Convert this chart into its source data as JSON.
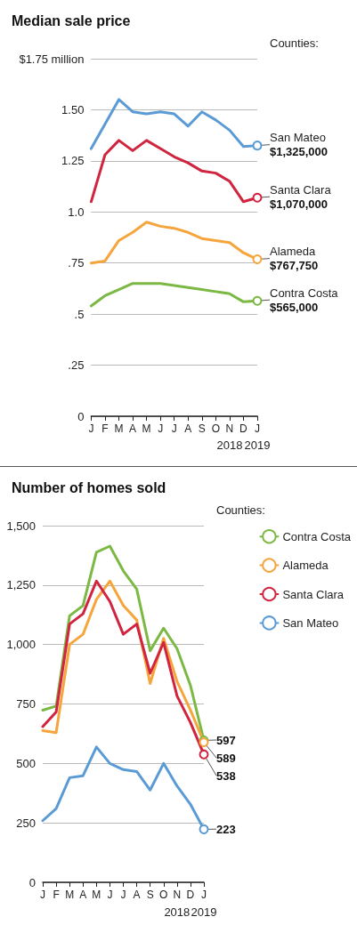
{
  "chart_data": [
    {
      "type": "line",
      "title": "Median sale price",
      "legend_title": "Counties:",
      "categories": [
        "J",
        "F",
        "M",
        "A",
        "M",
        "J",
        "J",
        "A",
        "S",
        "O",
        "N",
        "D",
        "J"
      ],
      "series": [
        {
          "name": "San Mateo",
          "color": "#5b9bd5",
          "values": [
            1.31,
            1.43,
            1.55,
            1.49,
            1.48,
            1.49,
            1.48,
            1.42,
            1.49,
            1.45,
            1.4,
            1.32,
            1.325
          ]
        },
        {
          "name": "Santa Clara",
          "color": "#d0243f",
          "values": [
            1.05,
            1.28,
            1.35,
            1.3,
            1.35,
            1.31,
            1.27,
            1.24,
            1.2,
            1.19,
            1.15,
            1.05,
            1.07
          ]
        },
        {
          "name": "Alameda",
          "color": "#f5a53c",
          "values": [
            0.75,
            0.76,
            0.86,
            0.9,
            0.95,
            0.93,
            0.92,
            0.9,
            0.87,
            0.86,
            0.85,
            0.8,
            0.768
          ]
        },
        {
          "name": "Contra Costa",
          "color": "#7cb944",
          "values": [
            0.54,
            0.59,
            0.62,
            0.65,
            0.65,
            0.65,
            0.64,
            0.63,
            0.62,
            0.61,
            0.6,
            0.56,
            0.565
          ]
        }
      ],
      "ylim": [
        0,
        1.75
      ],
      "yticks": [
        0,
        {
          "value": 0.25,
          "label": ".25"
        },
        {
          "value": 0.5,
          "label": ".5"
        },
        {
          "value": 0.75,
          "label": ".75"
        },
        {
          "value": 1,
          "label": "1.0"
        },
        1.25,
        {
          "value": 1.5,
          "label": "1.50"
        },
        {
          "value": 1.75,
          "label": "$1.75 million"
        }
      ],
      "grid": "y",
      "annotations": [
        "2018",
        "2019",
        "$1,325,000",
        "$1,070,000",
        "$767,750",
        "$565,000"
      ]
    },
    {
      "type": "line",
      "title": "Number of homes sold",
      "legend_title": "Counties:",
      "legend": "right",
      "categories": [
        "J",
        "F",
        "M",
        "A",
        "M",
        "J",
        "J",
        "A",
        "S",
        "O",
        "N",
        "D",
        "J"
      ],
      "series": [
        {
          "name": "Contra Costa",
          "color": "#7cb944",
          "values": [
            724,
            741,
            1121,
            1164,
            1388,
            1414,
            1310,
            1233,
            974,
            1069,
            983,
            828,
            597
          ],
          "value_labels": [
            null,
            null,
            null,
            null,
            null,
            null,
            null,
            null,
            null,
            null,
            null,
            null,
            "597"
          ]
        },
        {
          "name": "Alameda",
          "color": "#f5a53c",
          "values": [
            638,
            629,
            1000,
            1043,
            1190,
            1267,
            1164,
            1103,
            836,
            1026,
            845,
            724,
            589
          ],
          "value_labels": [
            null,
            null,
            null,
            null,
            null,
            null,
            null,
            null,
            null,
            null,
            null,
            null,
            "589"
          ]
        },
        {
          "name": "Santa Clara",
          "color": "#d0243f",
          "values": [
            655,
            716,
            1086,
            1129,
            1267,
            1181,
            1043,
            1086,
            879,
            1009,
            784,
            672,
            538
          ],
          "value_labels": [
            null,
            null,
            null,
            null,
            null,
            null,
            null,
            null,
            null,
            null,
            null,
            null,
            "538"
          ]
        },
        {
          "name": "San Mateo",
          "color": "#5b9bd5",
          "values": [
            259,
            310,
            440,
            448,
            569,
            500,
            474,
            466,
            388,
            500,
            405,
            328,
            223
          ],
          "value_labels": [
            null,
            null,
            null,
            null,
            null,
            null,
            null,
            null,
            null,
            null,
            null,
            null,
            "223"
          ]
        }
      ],
      "ylim": [
        0,
        1500
      ],
      "yticks": [
        0,
        250,
        500,
        750,
        {
          "value": 1000,
          "label": "1,000"
        },
        {
          "value": 1250,
          "label": "1,250"
        },
        {
          "value": 1500,
          "label": "1,500"
        }
      ],
      "grid": "y",
      "annotations": [
        "2018",
        "2019"
      ]
    }
  ]
}
